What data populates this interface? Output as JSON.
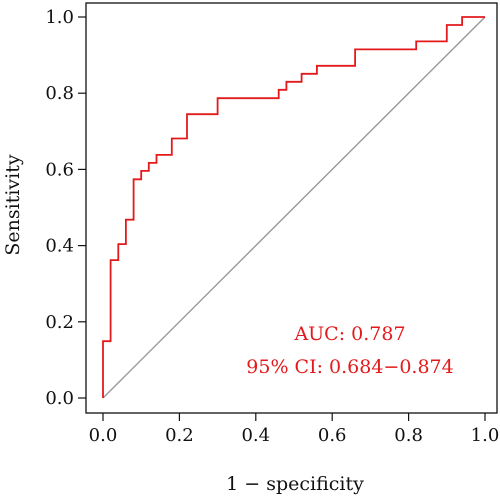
{
  "chart_data": {
    "type": "line",
    "title": "",
    "xlabel": "1 − specificity",
    "ylabel": "Sensitivity",
    "xlim": [
      0,
      1
    ],
    "ylim": [
      0,
      1
    ],
    "x_ticks": [
      "0.0",
      "0.2",
      "0.4",
      "0.6",
      "0.8",
      "1.0"
    ],
    "y_ticks": [
      "0.0",
      "0.2",
      "0.4",
      "0.6",
      "0.8",
      "1.0"
    ],
    "grid": false,
    "series": [
      {
        "name": "",
        "color": "#e31a1c",
        "step": true,
        "points": [
          [
            0.0,
            0.0
          ],
          [
            0.0,
            0.149
          ],
          [
            0.02,
            0.149
          ],
          [
            0.02,
            0.362
          ],
          [
            0.04,
            0.362
          ],
          [
            0.04,
            0.404
          ],
          [
            0.06,
            0.404
          ],
          [
            0.06,
            0.468
          ],
          [
            0.08,
            0.468
          ],
          [
            0.08,
            0.574
          ],
          [
            0.1,
            0.574
          ],
          [
            0.1,
            0.596
          ],
          [
            0.12,
            0.596
          ],
          [
            0.12,
            0.617
          ],
          [
            0.14,
            0.617
          ],
          [
            0.14,
            0.638
          ],
          [
            0.18,
            0.638
          ],
          [
            0.18,
            0.681
          ],
          [
            0.22,
            0.681
          ],
          [
            0.22,
            0.745
          ],
          [
            0.3,
            0.745
          ],
          [
            0.3,
            0.787
          ],
          [
            0.46,
            0.787
          ],
          [
            0.46,
            0.809
          ],
          [
            0.48,
            0.809
          ],
          [
            0.48,
            0.83
          ],
          [
            0.52,
            0.83
          ],
          [
            0.52,
            0.851
          ],
          [
            0.56,
            0.851
          ],
          [
            0.56,
            0.872
          ],
          [
            0.66,
            0.872
          ],
          [
            0.66,
            0.915
          ],
          [
            0.82,
            0.915
          ],
          [
            0.82,
            0.936
          ],
          [
            0.9,
            0.936
          ],
          [
            0.9,
            0.979
          ],
          [
            0.94,
            0.979
          ],
          [
            0.94,
            1.0
          ],
          [
            1.0,
            1.0
          ]
        ]
      },
      {
        "name": "",
        "color": "#999999",
        "reference": true,
        "points": [
          [
            0,
            0
          ],
          [
            1,
            1
          ]
        ]
      }
    ],
    "annotations": {
      "auc": "AUC: 0.787",
      "ci": "95% CI: 0.684−0.874",
      "color": "#e31a1c"
    }
  }
}
